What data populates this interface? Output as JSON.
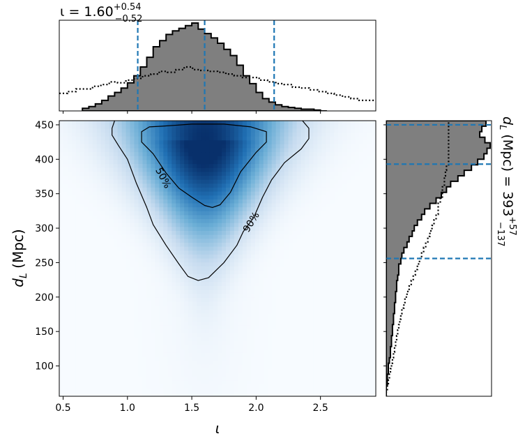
{
  "chart_data": [
    {
      "type": "heatmap",
      "panel": "joint",
      "xlabel": "ι",
      "ylabel": "d_L (Mpc)",
      "xlim": [
        0.47,
        2.93
      ],
      "ylim": [
        56,
        456
      ],
      "x_ticks": [
        "0.5",
        "1.0",
        "1.5",
        "2.0",
        "2.5"
      ],
      "x_tick_values": [
        0.5,
        1.0,
        1.5,
        2.0,
        2.5
      ],
      "y_ticks": [
        "100",
        "150",
        "200",
        "250",
        "300",
        "350",
        "400",
        "450"
      ],
      "y_tick_values": [
        100,
        150,
        200,
        250,
        300,
        350,
        400,
        450
      ],
      "colormap": "Blues",
      "density_peak": {
        "iota": 1.6,
        "dL": 430
      },
      "contours": [
        {
          "label": "50%",
          "label_at": {
            "iota": 1.28,
            "dL": 373
          },
          "points": [
            [
              1.27,
              448
            ],
            [
              1.5,
              451
            ],
            [
              1.75,
              451
            ],
            [
              1.96,
              447
            ],
            [
              2.08,
              440
            ],
            [
              2.08,
              425
            ],
            [
              2.0,
              410
            ],
            [
              1.88,
              382
            ],
            [
              1.8,
              352
            ],
            [
              1.72,
              334
            ],
            [
              1.66,
              330
            ],
            [
              1.6,
              333
            ],
            [
              1.5,
              345
            ],
            [
              1.4,
              358
            ],
            [
              1.3,
              380
            ],
            [
              1.2,
              408
            ],
            [
              1.11,
              425
            ],
            [
              1.11,
              440
            ],
            [
              1.17,
              447
            ]
          ]
        },
        {
          "label": "90%",
          "label_at": {
            "iota": 1.96,
            "dL": 309
          },
          "points": [
            [
              0.9,
              456
            ],
            [
              0.88,
              445
            ],
            [
              0.88,
              435
            ],
            [
              0.93,
              420
            ],
            [
              1.0,
              400
            ],
            [
              1.07,
              365
            ],
            [
              1.15,
              330
            ],
            [
              1.2,
              305
            ],
            [
              1.3,
              275
            ],
            [
              1.4,
              248
            ],
            [
              1.47,
              230
            ],
            [
              1.55,
              224
            ],
            [
              1.63,
              228
            ],
            [
              1.75,
              250
            ],
            [
              1.85,
              275
            ],
            [
              1.9,
              295
            ],
            [
              1.98,
              315
            ],
            [
              2.05,
              345
            ],
            [
              2.12,
              370
            ],
            [
              2.22,
              395
            ],
            [
              2.35,
              415
            ],
            [
              2.41,
              430
            ],
            [
              2.41,
              445
            ],
            [
              2.36,
              456
            ]
          ]
        }
      ]
    },
    {
      "type": "histogram",
      "panel": "top-marginal",
      "title": "ι = 1.60",
      "title_sup": "+0.54",
      "title_sub": "−0.52",
      "median": 1.6,
      "interval": [
        1.08,
        2.14
      ],
      "bin_width": 0.05,
      "bins_start": 0.65,
      "series": [
        {
          "style": "filled-step",
          "values": [
            0.03,
            0.05,
            0.08,
            0.12,
            0.17,
            0.21,
            0.26,
            0.32,
            0.4,
            0.5,
            0.61,
            0.73,
            0.8,
            0.87,
            0.91,
            0.94,
            0.97,
            1.0,
            0.93,
            0.88,
            0.83,
            0.77,
            0.7,
            0.63,
            0.52,
            0.4,
            0.31,
            0.21,
            0.14,
            0.1,
            0.07,
            0.05,
            0.04,
            0.03,
            0.02,
            0.02,
            0.01,
            0.0
          ]
        },
        {
          "style": "dotted-step",
          "values": [
            0.2,
            0.22,
            0.25,
            0.25,
            0.28,
            0.3,
            0.33,
            0.32,
            0.35,
            0.37,
            0.4,
            0.42,
            0.45,
            0.44,
            0.47,
            0.5,
            0.47,
            0.46,
            0.45,
            0.44,
            0.42,
            0.4,
            0.38,
            0.38,
            0.35,
            0.33,
            0.31,
            0.3,
            0.27,
            0.26,
            0.24,
            0.22,
            0.2,
            0.18,
            0.16,
            0.14,
            0.12,
            0.12
          ]
        }
      ]
    },
    {
      "type": "histogram",
      "panel": "right-marginal",
      "orientation": "horizontal",
      "title": "d_L (Mpc) = 393",
      "title_sup": "+57",
      "title_sub": "−137",
      "median": 393,
      "interval": [
        256,
        450
      ],
      "bin_width": 8,
      "bins_start": 56,
      "series": [
        {
          "style": "filled-step",
          "values": [
            0.0,
            0.0,
            0.01,
            0.01,
            0.02,
            0.02,
            0.03,
            0.04,
            0.04,
            0.05,
            0.05,
            0.06,
            0.06,
            0.07,
            0.07,
            0.08,
            0.08,
            0.09,
            0.09,
            0.1,
            0.1,
            0.11,
            0.12,
            0.12,
            0.14,
            0.15,
            0.17,
            0.2,
            0.22,
            0.25,
            0.27,
            0.3,
            0.34,
            0.37,
            0.42,
            0.48,
            0.53,
            0.58,
            0.62,
            0.69,
            0.75,
            0.82,
            0.88,
            0.94,
            0.97,
            1.0,
            0.95,
            0.9,
            0.92,
            0.96
          ]
        },
        {
          "style": "dotted-step",
          "values": [
            0.0,
            0.01,
            0.02,
            0.03,
            0.04,
            0.05,
            0.06,
            0.07,
            0.08,
            0.09,
            0.1,
            0.11,
            0.12,
            0.13,
            0.14,
            0.15,
            0.17,
            0.18,
            0.2,
            0.22,
            0.24,
            0.26,
            0.28,
            0.3,
            0.32,
            0.34,
            0.36,
            0.38,
            0.4,
            0.42,
            0.44,
            0.46,
            0.48,
            0.5,
            0.5,
            0.52,
            0.54,
            0.54,
            0.56,
            0.56,
            0.57,
            0.58,
            0.6,
            0.6,
            0.6,
            0.6,
            0.6,
            0.6,
            0.6,
            0.6
          ]
        }
      ]
    }
  ],
  "colors": {
    "fill": "#7f7f7f",
    "edge": "#000000",
    "median_line": "#1f77b4",
    "contour": "#000000",
    "map_low": "#f7fbff",
    "map_high": "#08306b"
  }
}
